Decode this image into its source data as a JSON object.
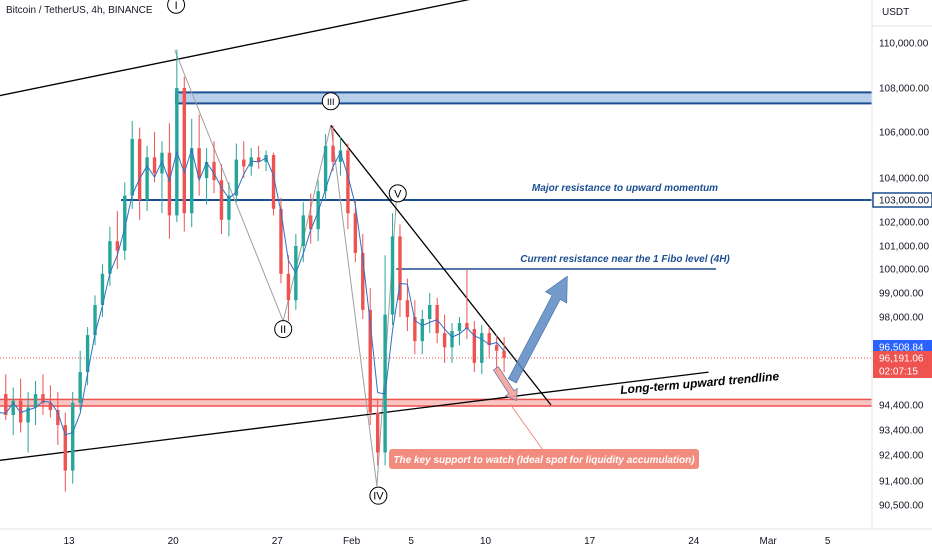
{
  "header": {
    "symbol_title": "Bitcoin / TetherUS, 4h, BINANCE",
    "currency": "USDT"
  },
  "colors": {
    "up": "#26a69a",
    "down": "#ef5350",
    "wave_line": "#9e9e9e",
    "resistance": "#1b4f91",
    "resistance_zone_fill": "#b8d0ec",
    "support_zone": "#ef5350",
    "support_zone_fill": "#f8c5c3",
    "trendline": "#000000",
    "moving_average": "#2f6fc4",
    "arrow_up": "#5a88c2",
    "arrow_down": "#f4a19a",
    "annotation_text": "#1b4f91",
    "callout_bg": "#f18c7e",
    "price_badge_blue": "#2962ff",
    "price_badge_red": "#ef5350"
  },
  "chart_data": {
    "type": "candlestick",
    "timeframe": "4h",
    "x_ticks": [
      {
        "label": "13",
        "day": 13
      },
      {
        "label": "20",
        "day": 20
      },
      {
        "label": "27",
        "day": 27
      },
      {
        "label": "Feb",
        "day": 32
      },
      {
        "label": "5",
        "day": 36
      },
      {
        "label": "10",
        "day": 41
      },
      {
        "label": "17",
        "day": 48
      },
      {
        "label": "24",
        "day": 55
      },
      {
        "label": "Mar",
        "day": 60
      },
      {
        "label": "5",
        "day": 64
      }
    ],
    "y_ticks": [
      {
        "label": "110,000.00",
        "value": 110000
      },
      {
        "label": "108,000.00",
        "value": 108000
      },
      {
        "label": "106,000.00",
        "value": 106000
      },
      {
        "label": "104,000.00",
        "value": 104000
      },
      {
        "label": "102,000.00",
        "value": 102000
      },
      {
        "label": "101,000.00",
        "value": 101000
      },
      {
        "label": "100,000.00",
        "value": 100000
      },
      {
        "label": "99,000.00",
        "value": 99000
      },
      {
        "label": "98,000.00",
        "value": 98000
      },
      {
        "label": "94,400.00",
        "value": 94400
      },
      {
        "label": "93,400.00",
        "value": 93400
      },
      {
        "label": "92,400.00",
        "value": 92400
      },
      {
        "label": "91,400.00",
        "value": 91400
      },
      {
        "label": "90,500.00",
        "value": 90500
      }
    ],
    "price_labels": [
      {
        "label": "103,000.00",
        "value": 103000,
        "style": "outline"
      },
      {
        "label": "96,508.84",
        "value": 96508.84,
        "style": "blue"
      },
      {
        "label": "96,191.06",
        "value": 96191.06,
        "style": "red"
      },
      {
        "label": "02:07:15",
        "value": 95950,
        "style": "red"
      }
    ],
    "candles": [
      {
        "day": 6.75,
        "o": 95500,
        "h": 96200,
        "l": 93900,
        "c": 94800
      },
      {
        "day": 7.25,
        "o": 94800,
        "h": 95600,
        "l": 93000,
        "c": 94100
      },
      {
        "day": 7.75,
        "o": 94100,
        "h": 95500,
        "l": 92600,
        "c": 93300
      },
      {
        "day": 8.25,
        "o": 93300,
        "h": 95400,
        "l": 91300,
        "c": 94900
      },
      {
        "day": 8.75,
        "o": 94900,
        "h": 95800,
        "l": 93800,
        "c": 94000
      },
      {
        "day": 9.25,
        "o": 94000,
        "h": 95200,
        "l": 93200,
        "c": 94600
      },
      {
        "day": 9.75,
        "o": 94600,
        "h": 95600,
        "l": 93300,
        "c": 93700
      },
      {
        "day": 10.25,
        "o": 93700,
        "h": 95000,
        "l": 92500,
        "c": 94300
      },
      {
        "day": 10.75,
        "o": 94300,
        "h": 95500,
        "l": 93600,
        "c": 94900
      },
      {
        "day": 11.25,
        "o": 94900,
        "h": 95800,
        "l": 94000,
        "c": 94500
      },
      {
        "day": 11.75,
        "o": 94500,
        "h": 95300,
        "l": 93900,
        "c": 94200
      },
      {
        "day": 12.25,
        "o": 94200,
        "h": 95000,
        "l": 92800,
        "c": 93600
      },
      {
        "day": 12.75,
        "o": 93600,
        "h": 94100,
        "l": 91000,
        "c": 91800
      },
      {
        "day": 13.25,
        "o": 91800,
        "h": 95000,
        "l": 91300,
        "c": 94500
      },
      {
        "day": 13.75,
        "o": 94500,
        "h": 96400,
        "l": 94200,
        "c": 95900
      },
      {
        "day": 14.25,
        "o": 95900,
        "h": 97500,
        "l": 95300,
        "c": 97100
      },
      {
        "day": 14.75,
        "o": 97100,
        "h": 98900,
        "l": 96600,
        "c": 98500
      },
      {
        "day": 15.25,
        "o": 98500,
        "h": 100200,
        "l": 98000,
        "c": 99800
      },
      {
        "day": 15.75,
        "o": 99800,
        "h": 101800,
        "l": 99300,
        "c": 101200
      },
      {
        "day": 16.25,
        "o": 101200,
        "h": 102500,
        "l": 100000,
        "c": 100800
      },
      {
        "day": 16.75,
        "o": 100800,
        "h": 103800,
        "l": 100400,
        "c": 103200
      },
      {
        "day": 17.25,
        "o": 103200,
        "h": 106500,
        "l": 102600,
        "c": 105700
      },
      {
        "day": 17.75,
        "o": 105700,
        "h": 106200,
        "l": 102100,
        "c": 103000
      },
      {
        "day": 18.25,
        "o": 103000,
        "h": 105400,
        "l": 102500,
        "c": 104900
      },
      {
        "day": 18.75,
        "o": 104900,
        "h": 106000,
        "l": 103800,
        "c": 104200
      },
      {
        "day": 19.25,
        "o": 104200,
        "h": 105600,
        "l": 102400,
        "c": 105100
      },
      {
        "day": 19.75,
        "o": 105100,
        "h": 106400,
        "l": 101300,
        "c": 102300
      },
      {
        "day": 20.25,
        "o": 102300,
        "h": 109700,
        "l": 102000,
        "c": 108000
      },
      {
        "day": 20.75,
        "o": 108000,
        "h": 108500,
        "l": 101600,
        "c": 102400
      },
      {
        "day": 21.25,
        "o": 102400,
        "h": 106600,
        "l": 101800,
        "c": 105300
      },
      {
        "day": 21.75,
        "o": 105300,
        "h": 106800,
        "l": 103200,
        "c": 104000
      },
      {
        "day": 22.25,
        "o": 104000,
        "h": 105300,
        "l": 102800,
        "c": 104700
      },
      {
        "day": 22.75,
        "o": 104700,
        "h": 105600,
        "l": 103300,
        "c": 103900
      },
      {
        "day": 23.25,
        "o": 103900,
        "h": 104600,
        "l": 101500,
        "c": 102100
      },
      {
        "day": 23.75,
        "o": 102100,
        "h": 103800,
        "l": 101400,
        "c": 103200
      },
      {
        "day": 24.25,
        "o": 103200,
        "h": 105500,
        "l": 102900,
        "c": 104800
      },
      {
        "day": 24.75,
        "o": 104800,
        "h": 105600,
        "l": 104000,
        "c": 104500
      },
      {
        "day": 25.25,
        "o": 104500,
        "h": 105300,
        "l": 104100,
        "c": 104900
      },
      {
        "day": 25.75,
        "o": 104900,
        "h": 105400,
        "l": 104400,
        "c": 104700
      },
      {
        "day": 26.25,
        "o": 104700,
        "h": 105200,
        "l": 104300,
        "c": 105000
      },
      {
        "day": 26.75,
        "o": 105000,
        "h": 105100,
        "l": 102300,
        "c": 102600
      },
      {
        "day": 27.25,
        "o": 102600,
        "h": 103100,
        "l": 99400,
        "c": 99800
      },
      {
        "day": 27.75,
        "o": 99800,
        "h": 100600,
        "l": 97800,
        "c": 98700
      },
      {
        "day": 28.25,
        "o": 98700,
        "h": 101500,
        "l": 98300,
        "c": 101000
      },
      {
        "day": 28.75,
        "o": 101000,
        "h": 102900,
        "l": 100300,
        "c": 102300
      },
      {
        "day": 29.25,
        "o": 102300,
        "h": 103300,
        "l": 101100,
        "c": 101700
      },
      {
        "day": 29.75,
        "o": 101700,
        "h": 103900,
        "l": 101200,
        "c": 103400
      },
      {
        "day": 30.25,
        "o": 103400,
        "h": 105900,
        "l": 103000,
        "c": 105400
      },
      {
        "day": 30.75,
        "o": 105400,
        "h": 106300,
        "l": 104300,
        "c": 104700
      },
      {
        "day": 31.25,
        "o": 104700,
        "h": 105800,
        "l": 104100,
        "c": 105200
      },
      {
        "day": 31.75,
        "o": 105200,
        "h": 105500,
        "l": 101700,
        "c": 102400
      },
      {
        "day": 32.25,
        "o": 102400,
        "h": 103000,
        "l": 100300,
        "c": 100700
      },
      {
        "day": 32.75,
        "o": 100700,
        "h": 101500,
        "l": 97900,
        "c": 98300
      },
      {
        "day": 33.25,
        "o": 98300,
        "h": 99200,
        "l": 93600,
        "c": 94100
      },
      {
        "day": 33.75,
        "o": 94100,
        "h": 94700,
        "l": 92000,
        "c": 92500
      },
      {
        "day": 34.25,
        "o": 92500,
        "h": 100600,
        "l": 92000,
        "c": 98100
      },
      {
        "day": 34.75,
        "o": 98100,
        "h": 102400,
        "l": 97600,
        "c": 101400
      },
      {
        "day": 35.25,
        "o": 101400,
        "h": 101900,
        "l": 98000,
        "c": 98700
      },
      {
        "day": 35.75,
        "o": 98700,
        "h": 99600,
        "l": 97300,
        "c": 98000
      },
      {
        "day": 36.25,
        "o": 98000,
        "h": 98700,
        "l": 96300,
        "c": 96800
      },
      {
        "day": 36.75,
        "o": 96800,
        "h": 98300,
        "l": 96300,
        "c": 97900
      },
      {
        "day": 37.25,
        "o": 97900,
        "h": 99000,
        "l": 97200,
        "c": 98500
      },
      {
        "day": 37.75,
        "o": 98500,
        "h": 98800,
        "l": 96700,
        "c": 97200
      },
      {
        "day": 38.25,
        "o": 97200,
        "h": 98100,
        "l": 96100,
        "c": 96500
      },
      {
        "day": 38.75,
        "o": 96500,
        "h": 97700,
        "l": 96100,
        "c": 97300
      },
      {
        "day": 39.25,
        "o": 97300,
        "h": 98000,
        "l": 96600,
        "c": 97700
      },
      {
        "day": 39.75,
        "o": 97700,
        "h": 100000,
        "l": 96900,
        "c": 97400
      },
      {
        "day": 40.25,
        "o": 97400,
        "h": 97800,
        "l": 95900,
        "c": 96100
      },
      {
        "day": 40.75,
        "o": 96100,
        "h": 97600,
        "l": 95800,
        "c": 97200
      },
      {
        "day": 41.25,
        "o": 97200,
        "h": 97500,
        "l": 96200,
        "c": 96600
      },
      {
        "day": 41.75,
        "o": 96600,
        "h": 97100,
        "l": 95900,
        "c": 96400
      },
      {
        "day": 42.25,
        "o": 96400,
        "h": 97000,
        "l": 95900,
        "c": 96191
      }
    ],
    "wave_labels": [
      {
        "label": "I",
        "day": 20.2,
        "value": 111700
      },
      {
        "label": "II",
        "day": 27.4,
        "value": 97400
      },
      {
        "label": "III",
        "day": 30.6,
        "value": 107400
      },
      {
        "label": "IV",
        "day": 33.8,
        "value": 90850
      },
      {
        "label": "V",
        "day": 35.1,
        "value": 103300
      }
    ],
    "wave_path": [
      {
        "day": 20.1,
        "value": 109700
      },
      {
        "day": 27.4,
        "value": 97800
      },
      {
        "day": 30.6,
        "value": 106300
      },
      {
        "day": 33.7,
        "value": 91200
      },
      {
        "day": 35.0,
        "value": 102900
      }
    ],
    "resistance_zone": {
      "from_day": 20.2,
      "to_day": 71,
      "y_top": 107800,
      "y_bottom": 107300
    },
    "resistance_line": {
      "label": "Major resistance to upward momentum",
      "value": 103000,
      "from_day": 16.5
    },
    "fibo_line": {
      "label": "Current resistance near the 1 Fibo level (4H)",
      "value": 100000,
      "from_day": 35.0,
      "to_day": 56.5
    },
    "support_zone": {
      "from_day": 0,
      "to_day": 71,
      "y_top": 94700,
      "y_bottom": 94400
    },
    "upper_channel": [
      {
        "day": 0,
        "value": 106500
      },
      {
        "day": 50,
        "value": 113300
      }
    ],
    "lower_trendline": {
      "label": "Long-term upward trendline",
      "points": [
        {
          "day": 0,
          "value": 91600
        },
        {
          "day": 56,
          "value": 95900
        }
      ]
    },
    "descending_trendline": [
      {
        "day": 30.6,
        "value": 106300
      },
      {
        "day": 45.4,
        "value": 94400
      }
    ],
    "arrow_up": {
      "from": {
        "day": 42.8,
        "value": 95500
      },
      "to": {
        "day": 46.5,
        "value": 99700
      }
    },
    "arrow_down": {
      "from": {
        "day": 41.7,
        "value": 96000
      },
      "to": {
        "day": 43.1,
        "value": 94600
      }
    },
    "callout": {
      "label": "The key support to watch (Ideal spot for liquidity accumulation)"
    },
    "last_price_line": 96191.06
  }
}
